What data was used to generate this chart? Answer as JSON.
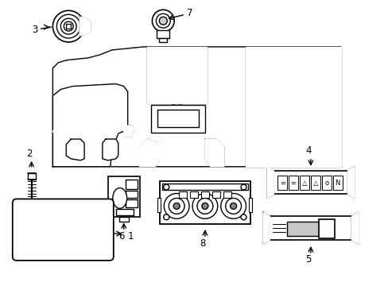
{
  "background_color": "#ffffff",
  "line_color": "#000000",
  "line_width": 1.0,
  "figsize": [
    4.89,
    3.6
  ],
  "dpi": 100,
  "label_fontsize": 8.5
}
